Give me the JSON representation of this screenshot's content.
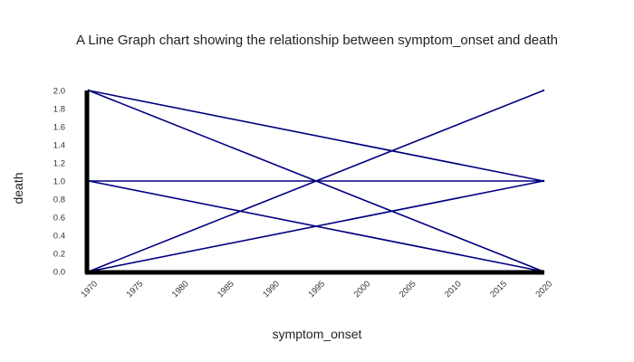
{
  "chart_data": {
    "type": "line",
    "title": "A Line Graph chart showing the relationship between symptom_onset and death",
    "xlabel": "symptom_onset",
    "ylabel": "death",
    "xlim": [
      1969,
      2019
    ],
    "ylim": [
      0,
      2
    ],
    "x_ticks": [
      "1970",
      "1975",
      "1980",
      "1985",
      "1990",
      "1995",
      "2000",
      "2005",
      "2010",
      "2015",
      "2020"
    ],
    "y_ticks": [
      "0.0",
      "0.2",
      "0.4",
      "0.6",
      "0.8",
      "1.0",
      "1.2",
      "1.4",
      "1.6",
      "1.8",
      "2.0"
    ],
    "grid": false,
    "line_color": "#000080",
    "series": [
      {
        "x": [
          1969,
          2019,
          1969,
          2019,
          1969,
          2019,
          1969,
          2019,
          1969,
          2019,
          1969
        ],
        "y": [
          0,
          2,
          0,
          1,
          2,
          0,
          1,
          1,
          2,
          1,
          1
        ]
      }
    ]
  }
}
